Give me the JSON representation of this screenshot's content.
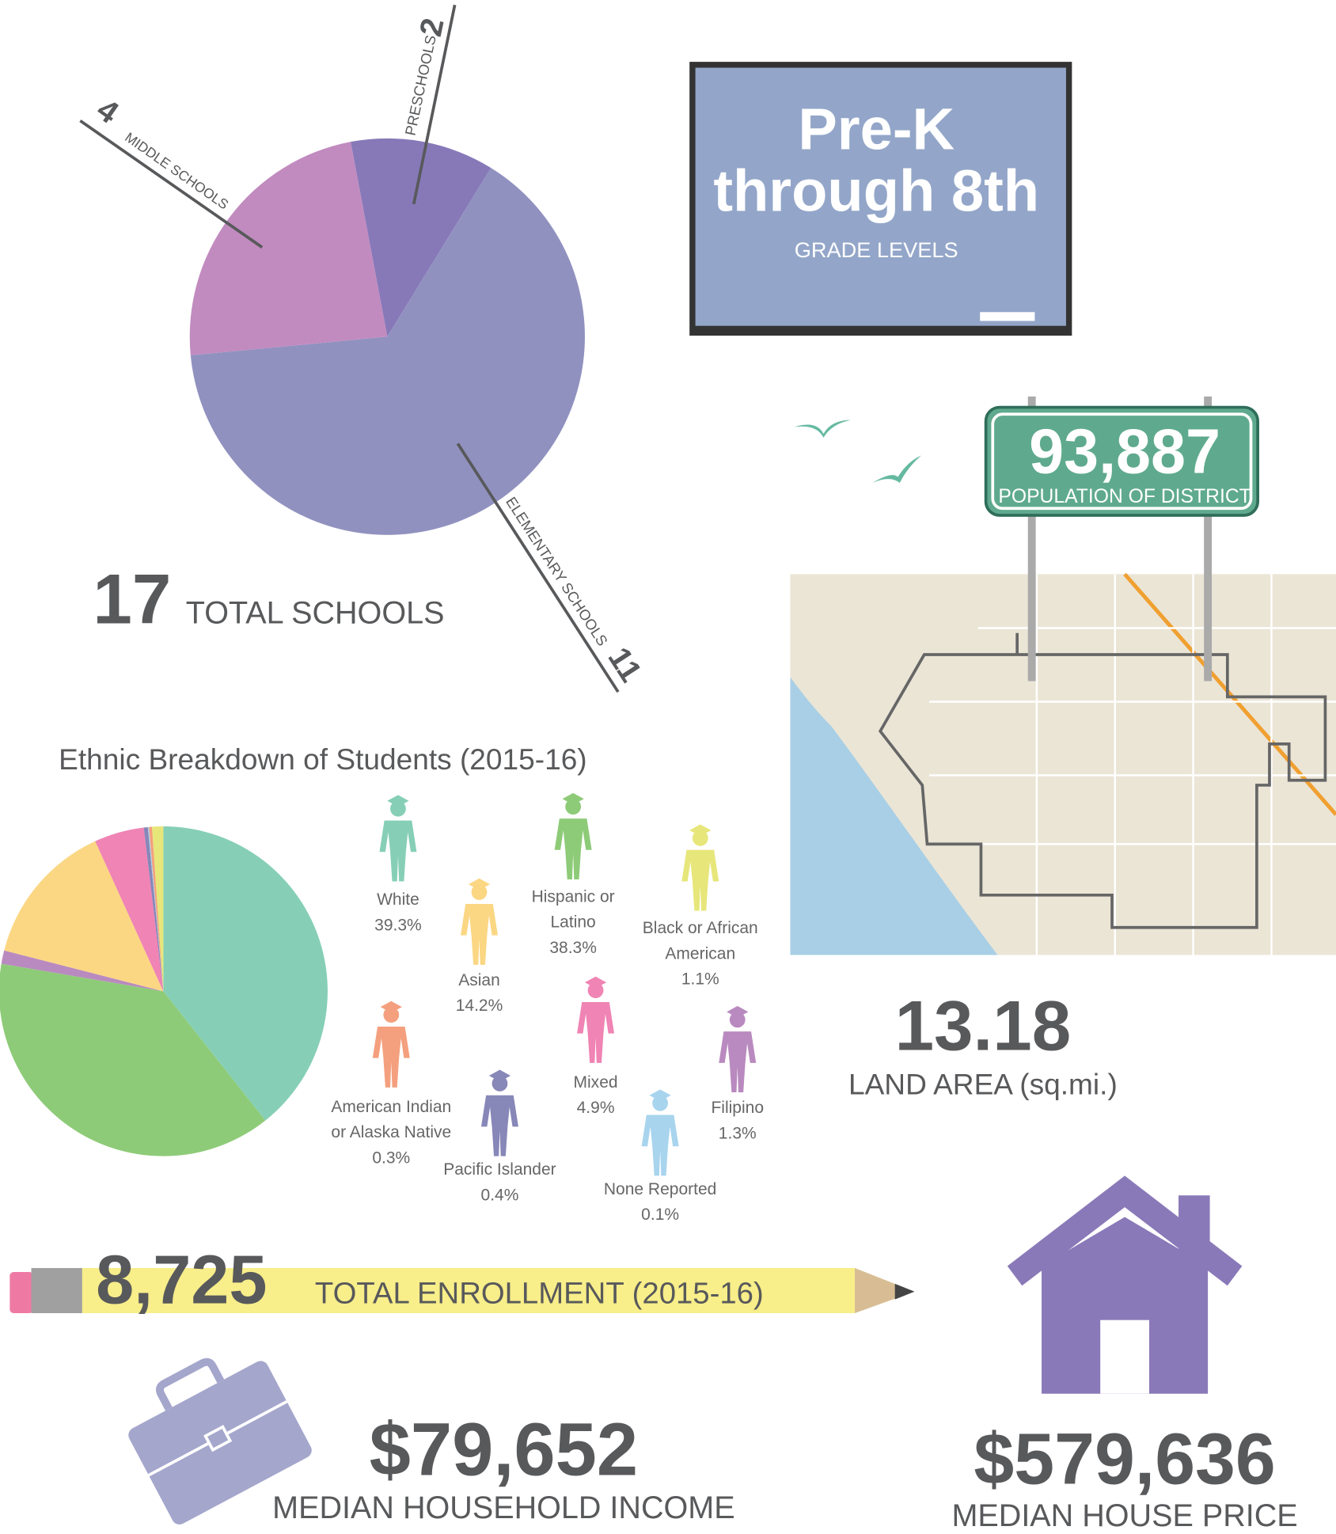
{
  "chart_data": [
    {
      "type": "pie",
      "categories": [
        "PRESCHOOLS",
        "ELEMENTARY SCHOOLS",
        "MIDDLE SCHOOLS"
      ],
      "values": [
        2,
        11,
        4
      ],
      "colors": [
        "#8779b8",
        "#9191c0",
        "#c18bbf"
      ]
    },
    {
      "type": "pie",
      "title": "Ethnic Breakdown of Students (2015-16)",
      "categories": [
        "White",
        "Hispanic or Latino",
        "Filipino",
        "Asian",
        "Mixed",
        "Pacific Islander",
        "None Reported",
        "American Indian or Alaska Native",
        "Black or African American"
      ],
      "values": [
        39.3,
        38.3,
        1.3,
        14.2,
        4.9,
        0.4,
        0.1,
        0.3,
        1.1
      ],
      "value_labels": [
        "39.3%",
        "38.3%",
        "1.3%",
        "14.2%",
        "4.9%",
        "0.4%",
        "0.1%",
        "0.3%",
        "1.1%"
      ],
      "colors": [
        "#86cfb6",
        "#8ecb78",
        "#b98abf",
        "#fbd784",
        "#f084b4",
        "#8787b8",
        "#a8d4ee",
        "#f4a07e",
        "#e7e67a"
      ]
    }
  ],
  "infographic": {
    "total_schools": {
      "value": "17",
      "label": "TOTAL SCHOOLS"
    },
    "grade_levels": {
      "line1": "Pre-K",
      "line2": "through 8th",
      "label": "GRADE LEVELS"
    },
    "population": {
      "value": "93,887",
      "label": "POPULATION OF DISTRICT"
    },
    "land_area": {
      "value": "13.18",
      "label": "LAND AREA (sq.mi.)"
    },
    "enrollment": {
      "value": "8,725",
      "label": "TOTAL ENROLLMENT (2015-16)"
    },
    "income": {
      "value": "$79,652",
      "label": "MEDIAN HOUSEHOLD INCOME"
    },
    "house_price": {
      "value": "$579,636",
      "label": "MEDIAN HOUSE PRICE"
    }
  }
}
